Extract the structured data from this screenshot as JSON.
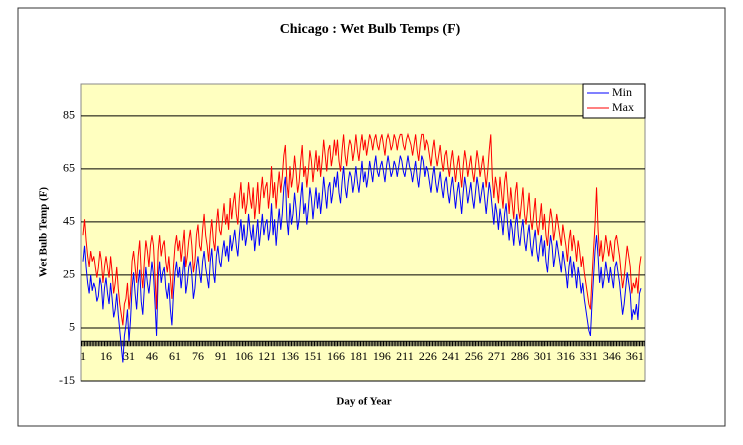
{
  "chart_data": {
    "type": "line",
    "title": "Chicago : Wet Bulb Temps (F)",
    "x_label": "Day of Year",
    "y_label": "Wet Bulb Temp (F)",
    "x": [
      1,
      2,
      3,
      4,
      5,
      6,
      7,
      8,
      9,
      10,
      11,
      12,
      13,
      14,
      15,
      16,
      17,
      18,
      19,
      20,
      21,
      22,
      23,
      24,
      25,
      26,
      27,
      28,
      29,
      30,
      31,
      32,
      33,
      34,
      35,
      36,
      37,
      38,
      39,
      40,
      41,
      42,
      43,
      44,
      45,
      46,
      47,
      48,
      49,
      50,
      51,
      52,
      53,
      54,
      55,
      56,
      57,
      58,
      59,
      60,
      61,
      62,
      63,
      64,
      65,
      66,
      67,
      68,
      69,
      70,
      71,
      72,
      73,
      74,
      75,
      76,
      77,
      78,
      79,
      80,
      81,
      82,
      83,
      84,
      85,
      86,
      87,
      88,
      89,
      90,
      91,
      92,
      93,
      94,
      95,
      96,
      97,
      98,
      99,
      100,
      101,
      102,
      103,
      104,
      105,
      106,
      107,
      108,
      109,
      110,
      111,
      112,
      113,
      114,
      115,
      116,
      117,
      118,
      119,
      120,
      121,
      122,
      123,
      124,
      125,
      126,
      127,
      128,
      129,
      130,
      131,
      132,
      133,
      134,
      135,
      136,
      137,
      138,
      139,
      140,
      141,
      142,
      143,
      144,
      145,
      146,
      147,
      148,
      149,
      150,
      151,
      152,
      153,
      154,
      155,
      156,
      157,
      158,
      159,
      160,
      161,
      162,
      163,
      164,
      165,
      166,
      167,
      168,
      169,
      170,
      171,
      172,
      173,
      174,
      175,
      176,
      177,
      178,
      179,
      180,
      181,
      182,
      183,
      184,
      185,
      186,
      187,
      188,
      189,
      190,
      191,
      192,
      193,
      194,
      195,
      196,
      197,
      198,
      199,
      200,
      201,
      202,
      203,
      204,
      205,
      206,
      207,
      208,
      209,
      210,
      211,
      212,
      213,
      214,
      215,
      216,
      217,
      218,
      219,
      220,
      221,
      222,
      223,
      224,
      225,
      226,
      227,
      228,
      229,
      230,
      231,
      232,
      233,
      234,
      235,
      236,
      237,
      238,
      239,
      240,
      241,
      242,
      243,
      244,
      245,
      246,
      247,
      248,
      249,
      250,
      251,
      252,
      253,
      254,
      255,
      256,
      257,
      258,
      259,
      260,
      261,
      262,
      263,
      264,
      265,
      266,
      267,
      268,
      269,
      270,
      271,
      272,
      273,
      274,
      275,
      276,
      277,
      278,
      279,
      280,
      281,
      282,
      283,
      284,
      285,
      286,
      287,
      288,
      289,
      290,
      291,
      292,
      293,
      294,
      295,
      296,
      297,
      298,
      299,
      300,
      301,
      302,
      303,
      304,
      305,
      306,
      307,
      308,
      309,
      310,
      311,
      312,
      313,
      314,
      315,
      316,
      317,
      318,
      319,
      320,
      321,
      322,
      323,
      324,
      325,
      326,
      327,
      328,
      329,
      330,
      331,
      332,
      333,
      334,
      335,
      336,
      337,
      338,
      339,
      340,
      341,
      342,
      343,
      344,
      345,
      346,
      347,
      348,
      349,
      350,
      351,
      352,
      353,
      354,
      355,
      356,
      357,
      358,
      359,
      360,
      361,
      362,
      363,
      364,
      365
    ],
    "series": [
      {
        "name": "Min",
        "color": "#0000ff",
        "values": [
          30,
          36,
          28,
          22,
          18,
          25,
          19,
          22,
          20,
          15,
          17,
          24,
          21,
          12,
          20,
          24,
          18,
          14,
          22,
          16,
          9,
          12,
          18,
          10,
          4,
          -2,
          -8,
          2,
          6,
          12,
          0,
          8,
          20,
          26,
          18,
          12,
          22,
          27,
          15,
          10,
          20,
          28,
          22,
          18,
          24,
          30,
          25,
          14,
          2,
          24,
          30,
          22,
          26,
          28,
          20,
          16,
          22,
          12,
          6,
          18,
          26,
          30,
          24,
          28,
          20,
          26,
          32,
          18,
          22,
          28,
          30,
          25,
          16,
          20,
          28,
          32,
          26,
          22,
          30,
          34,
          28,
          24,
          20,
          30,
          35,
          26,
          22,
          32,
          36,
          30,
          28,
          34,
          38,
          32,
          36,
          30,
          40,
          34,
          38,
          42,
          36,
          32,
          40,
          46,
          38,
          44,
          36,
          40,
          48,
          42,
          38,
          44,
          34,
          40,
          46,
          36,
          42,
          48,
          40,
          44,
          46,
          38,
          42,
          52,
          40,
          46,
          36,
          44,
          50,
          42,
          48,
          58,
          62,
          46,
          40,
          52,
          44,
          48,
          56,
          50,
          42,
          46,
          54,
          60,
          48,
          52,
          44,
          50,
          58,
          54,
          46,
          52,
          58,
          50,
          56,
          48,
          54,
          62,
          56,
          50,
          58,
          60,
          52,
          56,
          62,
          58,
          64,
          56,
          52,
          60,
          66,
          58,
          54,
          60,
          64,
          62,
          56,
          60,
          66,
          60,
          56,
          62,
          68,
          60,
          64,
          58,
          62,
          68,
          64,
          60,
          66,
          70,
          64,
          62,
          66,
          68,
          64,
          60,
          66,
          70,
          66,
          62,
          64,
          68,
          66,
          62,
          66,
          70,
          68,
          64,
          62,
          66,
          70,
          66,
          64,
          60,
          64,
          68,
          62,
          58,
          64,
          70,
          68,
          62,
          66,
          64,
          60,
          56,
          62,
          66,
          60,
          56,
          60,
          64,
          58,
          54,
          60,
          62,
          56,
          52,
          58,
          62,
          56,
          50,
          56,
          60,
          54,
          48,
          56,
          62,
          58,
          52,
          56,
          60,
          54,
          50,
          56,
          62,
          58,
          52,
          56,
          60,
          54,
          48,
          54,
          60,
          56,
          50,
          44,
          52,
          48,
          42,
          50,
          46,
          40,
          48,
          52,
          44,
          38,
          46,
          42,
          36,
          44,
          48,
          40,
          36,
          42,
          46,
          38,
          34,
          40,
          44,
          36,
          32,
          38,
          42,
          34,
          30,
          36,
          40,
          32,
          38,
          30,
          26,
          34,
          40,
          36,
          28,
          32,
          38,
          34,
          30,
          26,
          34,
          30,
          26,
          20,
          28,
          32,
          24,
          30,
          26,
          20,
          28,
          24,
          18,
          22,
          16,
          12,
          8,
          4,
          2,
          14,
          24,
          34,
          40,
          32,
          22,
          28,
          20,
          24,
          30,
          26,
          22,
          28,
          24,
          20,
          28,
          30,
          26,
          22,
          16,
          10,
          14,
          20,
          26,
          22,
          18,
          8,
          12,
          10,
          14,
          8,
          18,
          20
        ]
      },
      {
        "name": "Max",
        "color": "#ff0000",
        "values": [
          40,
          46,
          38,
          32,
          28,
          34,
          30,
          32,
          28,
          24,
          28,
          34,
          30,
          22,
          28,
          32,
          28,
          24,
          32,
          26,
          18,
          22,
          28,
          20,
          14,
          10,
          6,
          14,
          16,
          22,
          12,
          18,
          30,
          34,
          28,
          22,
          32,
          38,
          26,
          20,
          30,
          38,
          34,
          28,
          36,
          40,
          36,
          24,
          12,
          34,
          40,
          32,
          36,
          38,
          30,
          26,
          32,
          24,
          16,
          28,
          36,
          40,
          34,
          38,
          30,
          36,
          42,
          28,
          32,
          38,
          42,
          36,
          26,
          30,
          40,
          44,
          36,
          34,
          42,
          48,
          40,
          36,
          30,
          40,
          46,
          38,
          34,
          44,
          50,
          42,
          40,
          46,
          52,
          44,
          48,
          42,
          54,
          46,
          52,
          56,
          48,
          44,
          54,
          60,
          50,
          56,
          48,
          52,
          60,
          54,
          50,
          58,
          46,
          52,
          60,
          48,
          56,
          62,
          54,
          58,
          60,
          50,
          56,
          66,
          54,
          60,
          50,
          58,
          64,
          56,
          62,
          70,
          74,
          60,
          54,
          66,
          58,
          62,
          70,
          64,
          56,
          60,
          68,
          74,
          62,
          66,
          58,
          64,
          72,
          68,
          60,
          66,
          72,
          64,
          70,
          62,
          68,
          76,
          70,
          64,
          72,
          74,
          66,
          70,
          76,
          70,
          76,
          68,
          64,
          72,
          78,
          70,
          66,
          72,
          76,
          74,
          68,
          72,
          78,
          72,
          68,
          74,
          78,
          72,
          76,
          70,
          74,
          78,
          76,
          72,
          76,
          78,
          74,
          72,
          76,
          78,
          74,
          70,
          76,
          78,
          76,
          72,
          74,
          78,
          76,
          72,
          76,
          78,
          78,
          74,
          72,
          76,
          78,
          76,
          74,
          70,
          74,
          78,
          72,
          68,
          74,
          78,
          78,
          72,
          76,
          74,
          70,
          66,
          72,
          76,
          70,
          66,
          70,
          74,
          68,
          64,
          70,
          72,
          66,
          62,
          68,
          72,
          66,
          60,
          66,
          70,
          64,
          58,
          66,
          72,
          68,
          62,
          66,
          70,
          64,
          60,
          66,
          72,
          68,
          62,
          66,
          70,
          64,
          58,
          64,
          72,
          78,
          62,
          54,
          62,
          58,
          52,
          62,
          56,
          50,
          60,
          64,
          56,
          48,
          58,
          52,
          46,
          56,
          60,
          50,
          46,
          52,
          58,
          48,
          44,
          50,
          56,
          46,
          42,
          48,
          54,
          44,
          40,
          46,
          52,
          42,
          48,
          40,
          36,
          44,
          50,
          46,
          38,
          42,
          48,
          44,
          40,
          36,
          44,
          40,
          36,
          30,
          38,
          42,
          34,
          40,
          36,
          30,
          38,
          34,
          28,
          32,
          26,
          22,
          18,
          14,
          12,
          24,
          34,
          44,
          58,
          42,
          32,
          38,
          30,
          34,
          40,
          36,
          32,
          38,
          34,
          30,
          38,
          40,
          36,
          32,
          26,
          20,
          24,
          30,
          36,
          32,
          28,
          18,
          22,
          20,
          24,
          18,
          28,
          32
        ]
      }
    ],
    "xlim": [
      1,
      365
    ],
    "xticks": [
      1,
      16,
      31,
      46,
      61,
      76,
      91,
      106,
      121,
      136,
      151,
      166,
      181,
      196,
      211,
      226,
      241,
      256,
      271,
      286,
      301,
      316,
      331,
      346,
      361
    ],
    "ylim": [
      -15,
      97
    ],
    "yticks": [
      -15,
      5,
      25,
      45,
      65,
      85
    ],
    "grid": true,
    "legend": "top-right",
    "plot_background": "#ffffc0"
  }
}
